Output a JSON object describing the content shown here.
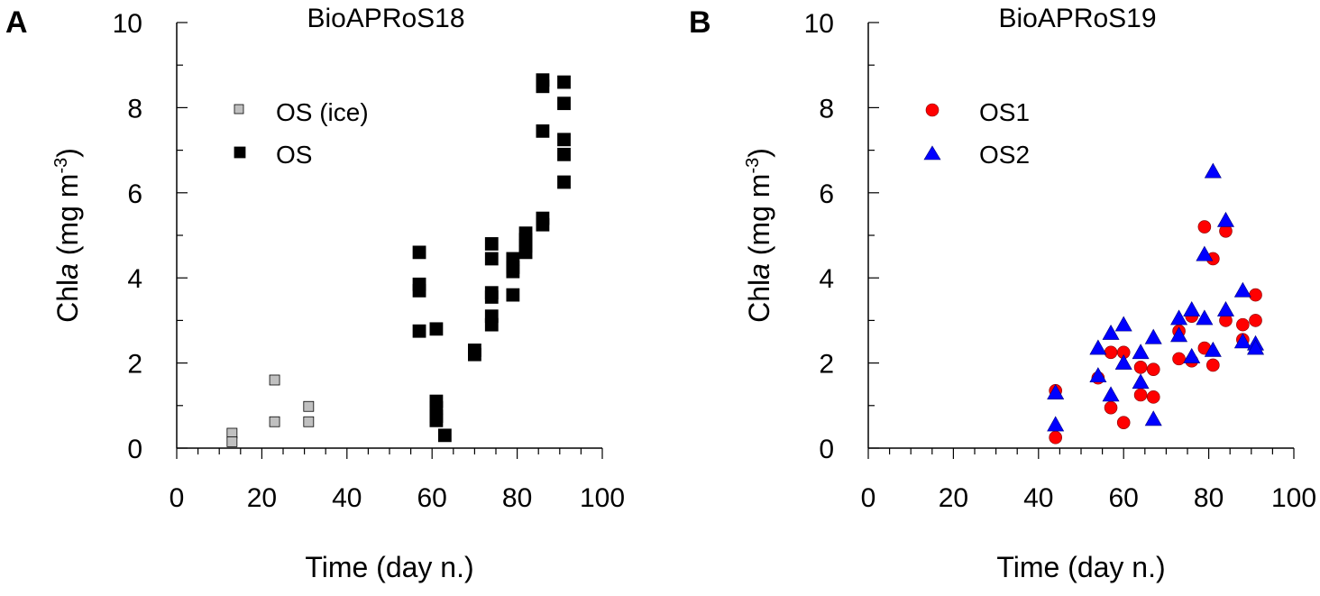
{
  "colors": {
    "os_ice": "#c0c0c0",
    "os": "#000000",
    "os1": "#ff0000",
    "os2": "#0000ff"
  },
  "chart_data": [
    {
      "type": "scatter",
      "panel": "A",
      "title": "BioAPRoS18",
      "xlabel": "Time (day n.)",
      "ylabel_prefix": "Chl",
      "ylabel_italic": "a",
      "ylabel_units": " (mg m",
      "ylabel_exp": "-3",
      "ylabel_close": ")",
      "xlim": [
        0,
        100
      ],
      "ylim": [
        0,
        10
      ],
      "xticks": [
        0,
        20,
        40,
        60,
        80,
        100
      ],
      "yticks": [
        0,
        2,
        4,
        6,
        8,
        10
      ],
      "legend_position": "top-left",
      "series": [
        {
          "name": "OS (ice)",
          "marker": "square",
          "color": "#c0c0c0",
          "points": [
            [
              13,
              0.35
            ],
            [
              13,
              0.15
            ],
            [
              23,
              1.6
            ],
            [
              23,
              0.62
            ],
            [
              31,
              0.98
            ],
            [
              31,
              0.62
            ]
          ]
        },
        {
          "name": "OS",
          "marker": "square",
          "color": "#000000",
          "points": [
            [
              57,
              4.6
            ],
            [
              57,
              3.85
            ],
            [
              57,
              3.7
            ],
            [
              57,
              2.75
            ],
            [
              61,
              2.8
            ],
            [
              61,
              1.1
            ],
            [
              61,
              0.95
            ],
            [
              61,
              0.75
            ],
            [
              61,
              0.65
            ],
            [
              63,
              0.3
            ],
            [
              70,
              2.3
            ],
            [
              70,
              2.2
            ],
            [
              74,
              4.8
            ],
            [
              74,
              4.45
            ],
            [
              74,
              3.65
            ],
            [
              74,
              3.55
            ],
            [
              74,
              3.1
            ],
            [
              74,
              2.9
            ],
            [
              79,
              4.45
            ],
            [
              79,
              4.25
            ],
            [
              79,
              4.15
            ],
            [
              79,
              3.6
            ],
            [
              82,
              5.05
            ],
            [
              82,
              4.9
            ],
            [
              82,
              4.75
            ],
            [
              82,
              4.6
            ],
            [
              86,
              8.65
            ],
            [
              86,
              8.5
            ],
            [
              86,
              7.45
            ],
            [
              86,
              5.4
            ],
            [
              86,
              5.25
            ],
            [
              91,
              8.6
            ],
            [
              91,
              8.1
            ],
            [
              91,
              7.25
            ],
            [
              91,
              6.9
            ],
            [
              91,
              6.25
            ]
          ]
        }
      ]
    },
    {
      "type": "scatter",
      "panel": "B",
      "title": "BioAPRoS19",
      "xlabel": "Time (day n.)",
      "ylabel_prefix": "Chl",
      "ylabel_italic": "a",
      "ylabel_units": " (mg m",
      "ylabel_exp": "-3",
      "ylabel_close": ")",
      "xlim": [
        0,
        100
      ],
      "ylim": [
        0,
        10
      ],
      "xticks": [
        0,
        20,
        40,
        60,
        80,
        100
      ],
      "yticks": [
        0,
        2,
        4,
        6,
        8,
        10
      ],
      "legend_position": "top-left",
      "series": [
        {
          "name": "OS1",
          "marker": "circle",
          "color": "#ff0000",
          "points": [
            [
              44,
              1.35
            ],
            [
              44,
              0.25
            ],
            [
              54,
              1.65
            ],
            [
              57,
              2.25
            ],
            [
              57,
              0.95
            ],
            [
              60,
              2.25
            ],
            [
              60,
              0.6
            ],
            [
              64,
              1.9
            ],
            [
              64,
              1.25
            ],
            [
              67,
              1.85
            ],
            [
              67,
              1.2
            ],
            [
              73,
              2.75
            ],
            [
              73,
              2.1
            ],
            [
              76,
              3.1
            ],
            [
              76,
              2.05
            ],
            [
              79,
              5.2
            ],
            [
              79,
              2.35
            ],
            [
              81,
              4.45
            ],
            [
              81,
              1.95
            ],
            [
              84,
              5.1
            ],
            [
              84,
              3.0
            ],
            [
              88,
              2.9
            ],
            [
              88,
              2.55
            ],
            [
              91,
              3.6
            ],
            [
              91,
              3.0
            ]
          ]
        },
        {
          "name": "OS2",
          "marker": "triangle",
          "color": "#0000ff",
          "points": [
            [
              44,
              1.3
            ],
            [
              44,
              0.55
            ],
            [
              54,
              2.35
            ],
            [
              54,
              1.7
            ],
            [
              57,
              2.7
            ],
            [
              57,
              1.25
            ],
            [
              60,
              2.9
            ],
            [
              60,
              2.0
            ],
            [
              64,
              2.25
            ],
            [
              64,
              1.55
            ],
            [
              67,
              2.6
            ],
            [
              67,
              0.68
            ],
            [
              73,
              3.05
            ],
            [
              73,
              2.65
            ],
            [
              76,
              3.25
            ],
            [
              76,
              2.15
            ],
            [
              79,
              4.55
            ],
            [
              79,
              3.05
            ],
            [
              81,
              6.5
            ],
            [
              81,
              2.3
            ],
            [
              84,
              5.35
            ],
            [
              84,
              3.25
            ],
            [
              88,
              3.7
            ],
            [
              88,
              2.5
            ],
            [
              91,
              2.45
            ],
            [
              91,
              2.35
            ]
          ]
        }
      ]
    }
  ]
}
